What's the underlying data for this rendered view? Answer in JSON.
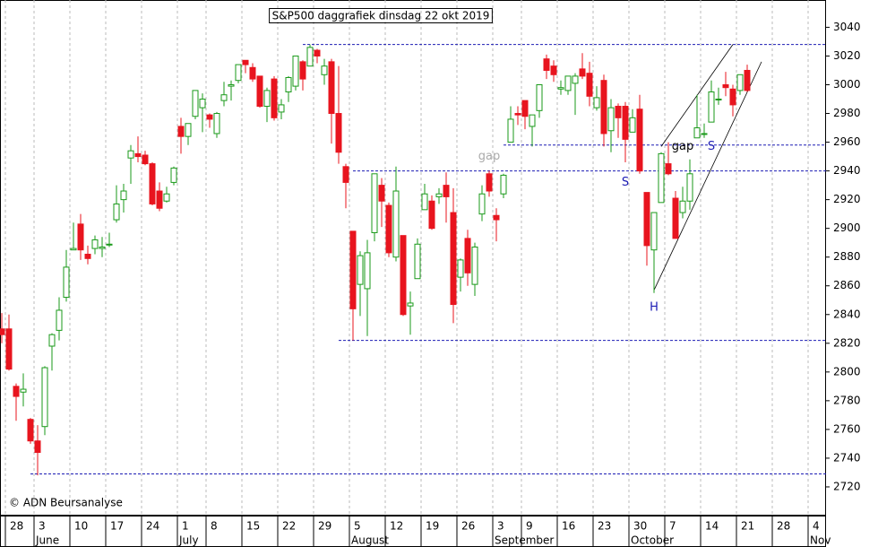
{
  "chart_data": {
    "type": "candlestick",
    "title": "S&P500 daggrafiek dinsdag 22 okt 2019",
    "copyright": "© ADN Beursanalyse",
    "categories": [
      null,
      "28",
      null,
      null,
      null,
      "3",
      null,
      null,
      null,
      null,
      "10",
      null,
      null,
      null,
      null,
      "17",
      null,
      null,
      null,
      null,
      "24",
      null,
      null,
      null,
      null,
      "1",
      null,
      null,
      null,
      "8",
      null,
      null,
      null,
      null,
      "15",
      null,
      null,
      null,
      null,
      "22",
      null,
      null,
      null,
      null,
      "29",
      null,
      null,
      null,
      null,
      "5",
      null,
      null,
      null,
      null,
      "12",
      null,
      null,
      null,
      null,
      "19",
      null,
      null,
      null,
      null,
      "26",
      null,
      null,
      null,
      null,
      "3",
      null,
      null,
      null,
      "9",
      null,
      null,
      null,
      null,
      "16",
      null,
      null,
      null,
      null,
      "23",
      null,
      null,
      null,
      null,
      "30",
      null,
      null,
      null,
      null,
      "7",
      null,
      null,
      null,
      null,
      "14",
      null,
      null,
      null,
      null,
      "21",
      null,
      null,
      null,
      null,
      "28",
      null,
      null,
      null,
      null,
      "4",
      null,
      null
    ],
    "months": [
      null,
      null,
      null,
      null,
      null,
      "June",
      null,
      null,
      null,
      null,
      null,
      null,
      null,
      null,
      null,
      null,
      null,
      null,
      null,
      null,
      null,
      null,
      null,
      null,
      null,
      "July",
      null,
      null,
      null,
      null,
      null,
      null,
      null,
      null,
      null,
      null,
      null,
      null,
      null,
      null,
      null,
      null,
      null,
      null,
      null,
      null,
      null,
      null,
      null,
      "August",
      null,
      null,
      null,
      null,
      null,
      null,
      null,
      null,
      null,
      null,
      null,
      null,
      null,
      null,
      null,
      null,
      null,
      null,
      null,
      "September",
      null,
      null,
      null,
      null,
      null,
      null,
      null,
      null,
      null,
      null,
      null,
      null,
      null,
      null,
      null,
      null,
      null,
      null,
      "October",
      null,
      null,
      null,
      null,
      null,
      null,
      null,
      null,
      null,
      null,
      null,
      null,
      null,
      null,
      null,
      null,
      null,
      null,
      null,
      null,
      null,
      null,
      null,
      null,
      "Nov",
      null,
      null
    ],
    "open": [
      2830,
      2830,
      2790,
      2786,
      2767,
      2752,
      2762,
      2818,
      2829,
      2852,
      2885,
      2903,
      2882,
      2886,
      2886,
      2889,
      2906,
      2920,
      2949,
      2952,
      2951,
      2945,
      2926,
      2919,
      2932,
      2971,
      2964,
      2978,
      2984,
      2979,
      2966,
      2989,
      2999,
      3003,
      3017,
      3012,
      3006,
      2985,
      3004,
      2981,
      2995,
      2999,
      3016,
      3013,
      3024,
      3007,
      3016,
      2980,
      2943,
      2898,
      2861,
      2858,
      2897,
      2930,
      2916,
      2880,
      2895,
      2846,
      2865,
      2913,
      2919,
      2922,
      2930,
      2911,
      2866,
      2893,
      2861,
      2910,
      2938,
      2909,
      2924,
      2960,
      2980,
      2989,
      2971,
      2982,
      3018,
      3013,
      2997,
      2996,
      3001,
      3011,
      3008,
      2984,
      3003,
      2968,
      2985,
      2985,
      2967,
      2983,
      2925,
      2885,
      2918,
      2945,
      2921,
      2911,
      2919,
      2963,
      2966,
      2974,
      2990,
      3000,
      2997,
      2996,
      3010,
      null,
      null,
      null,
      null,
      null,
      null,
      null,
      null,
      null,
      null,
      null
    ],
    "high": [
      2841,
      2840,
      2792,
      2799,
      2768,
      2763,
      2804,
      2827,
      2852,
      2885,
      2904,
      2910,
      2888,
      2895,
      2894,
      2897,
      2930,
      2931,
      2958,
      2964,
      2954,
      2946,
      2932,
      2929,
      2943,
      2977,
      2973,
      2996,
      2994,
      2980,
      2981,
      3002,
      3003,
      3014,
      3017,
      3015,
      3006,
      2998,
      3006,
      2990,
      3006,
      3020,
      3017,
      3028,
      3025,
      3018,
      3018,
      3013,
      2945,
      2898,
      2884,
      2892,
      2938,
      2935,
      2918,
      2943,
      2895,
      2856,
      2893,
      2931,
      2923,
      2928,
      2939,
      2928,
      2879,
      2899,
      2890,
      2930,
      2940,
      2914,
      2938,
      2985,
      2985,
      2989,
      2979,
      3000,
      3021,
      3017,
      3003,
      3006,
      3008,
      3022,
      3016,
      2999,
      3007,
      2990,
      2987,
      2988,
      2983,
      2993,
      2925,
      2911,
      2953,
      2960,
      2926,
      2929,
      2948,
      2993,
      2973,
      3003,
      2998,
      3009,
      3000,
      3007,
      3014,
      null,
      null,
      null,
      null,
      null,
      null,
      null,
      null,
      null,
      null,
      null
    ],
    "low": [
      2820,
      2801,
      2766,
      2776,
      2750,
      2728,
      2756,
      2801,
      2822,
      2849,
      2885,
      2878,
      2875,
      2882,
      2880,
      2887,
      2904,
      2911,
      2931,
      2946,
      2944,
      2916,
      2912,
      2918,
      2930,
      2952,
      2958,
      2976,
      2967,
      2970,
      2963,
      2985,
      2989,
      3001,
      3008,
      3002,
      2984,
      2974,
      2975,
      2976,
      2988,
      2996,
      2996,
      3013,
      3015,
      3000,
      2959,
      2945,
      2914,
      2822,
      2839,
      2825,
      2891,
      2901,
      2880,
      2877,
      2839,
      2826,
      2865,
      2913,
      2899,
      2917,
      2904,
      2834,
      2856,
      2860,
      2853,
      2905,
      2922,
      2891,
      2921,
      2960,
      2972,
      2969,
      2957,
      2977,
      3004,
      3002,
      2993,
      2993,
      2979,
      3004,
      2985,
      2982,
      2957,
      2953,
      2963,
      2946,
      2967,
      2938,
      2874,
      2855,
      2918,
      2937,
      2893,
      2907,
      2913,
      2963,
      2963,
      2974,
      2986,
      2992,
      2978,
      2993,
      2995,
      null,
      null,
      null,
      null,
      null,
      null,
      null,
      null,
      null,
      null,
      null
    ],
    "close": [
      2826,
      2802,
      2783,
      2788,
      2752,
      2744,
      2803,
      2826,
      2843,
      2873,
      2886,
      2885,
      2879,
      2892,
      2887,
      2889,
      2917,
      2926,
      2954,
      2950,
      2945,
      2917,
      2914,
      2924,
      2942,
      2964,
      2973,
      2996,
      2990,
      2976,
      2980,
      2993,
      3000,
      3014,
      3014,
      3004,
      2985,
      2996,
      2977,
      2986,
      3005,
      3020,
      3004,
      3026,
      3020,
      3013,
      2980,
      2953,
      2932,
      2844,
      2881,
      2883,
      2938,
      2919,
      2883,
      2926,
      2840,
      2848,
      2889,
      2924,
      2900,
      2924,
      2922,
      2847,
      2878,
      2869,
      2887,
      2924,
      2926,
      2906,
      2937,
      2976,
      2979,
      2978,
      2979,
      3000,
      3010,
      3007,
      2998,
      3006,
      3006,
      3006,
      2992,
      2991,
      2966,
      2984,
      2977,
      2962,
      2977,
      2940,
      2888,
      2911,
      2952,
      2938,
      2893,
      2919,
      2938,
      2970,
      2966,
      2995,
      2990,
      2998,
      2986,
      3007,
      2996,
      null,
      null,
      null,
      null,
      null,
      null,
      null,
      null,
      null,
      null,
      null
    ],
    "up_color": "#1a9a1a",
    "down_color": "#e8141e",
    "level_color": "#1c1cb4",
    "ylim": [
      2700,
      3059
    ],
    "yticks": [
      2720,
      2740,
      2760,
      2780,
      2800,
      2820,
      2840,
      2860,
      2880,
      2900,
      2920,
      2940,
      2960,
      2980,
      3000,
      3020,
      3040
    ],
    "grid": true,
    "levels": [
      {
        "value": 3028,
        "from": 42
      },
      {
        "value": 2958,
        "from": 70
      },
      {
        "value": 2940,
        "from": 49
      },
      {
        "value": 2822,
        "from": 47
      },
      {
        "value": 2729,
        "from": 4
      }
    ],
    "trendlines": [
      {
        "from": [
          91,
          2857
        ],
        "to": [
          106,
          3016
        ]
      },
      {
        "from": [
          92,
          2957
        ],
        "to": [
          102,
          3028
        ]
      }
    ],
    "annotations": [
      {
        "text": "gap",
        "at": [
          68,
          2950
        ],
        "color": "#aaaaaa"
      },
      {
        "text": "gap",
        "at": [
          95,
          2957
        ],
        "color": "#000000"
      },
      {
        "text": "S",
        "at": [
          87,
          2932
        ],
        "color": "#1c1cb4"
      },
      {
        "text": "S",
        "at": [
          99,
          2957
        ],
        "color": "#1c1cb4"
      },
      {
        "text": "H",
        "at": [
          91,
          2845
        ],
        "color": "#1c1cb4"
      }
    ]
  }
}
